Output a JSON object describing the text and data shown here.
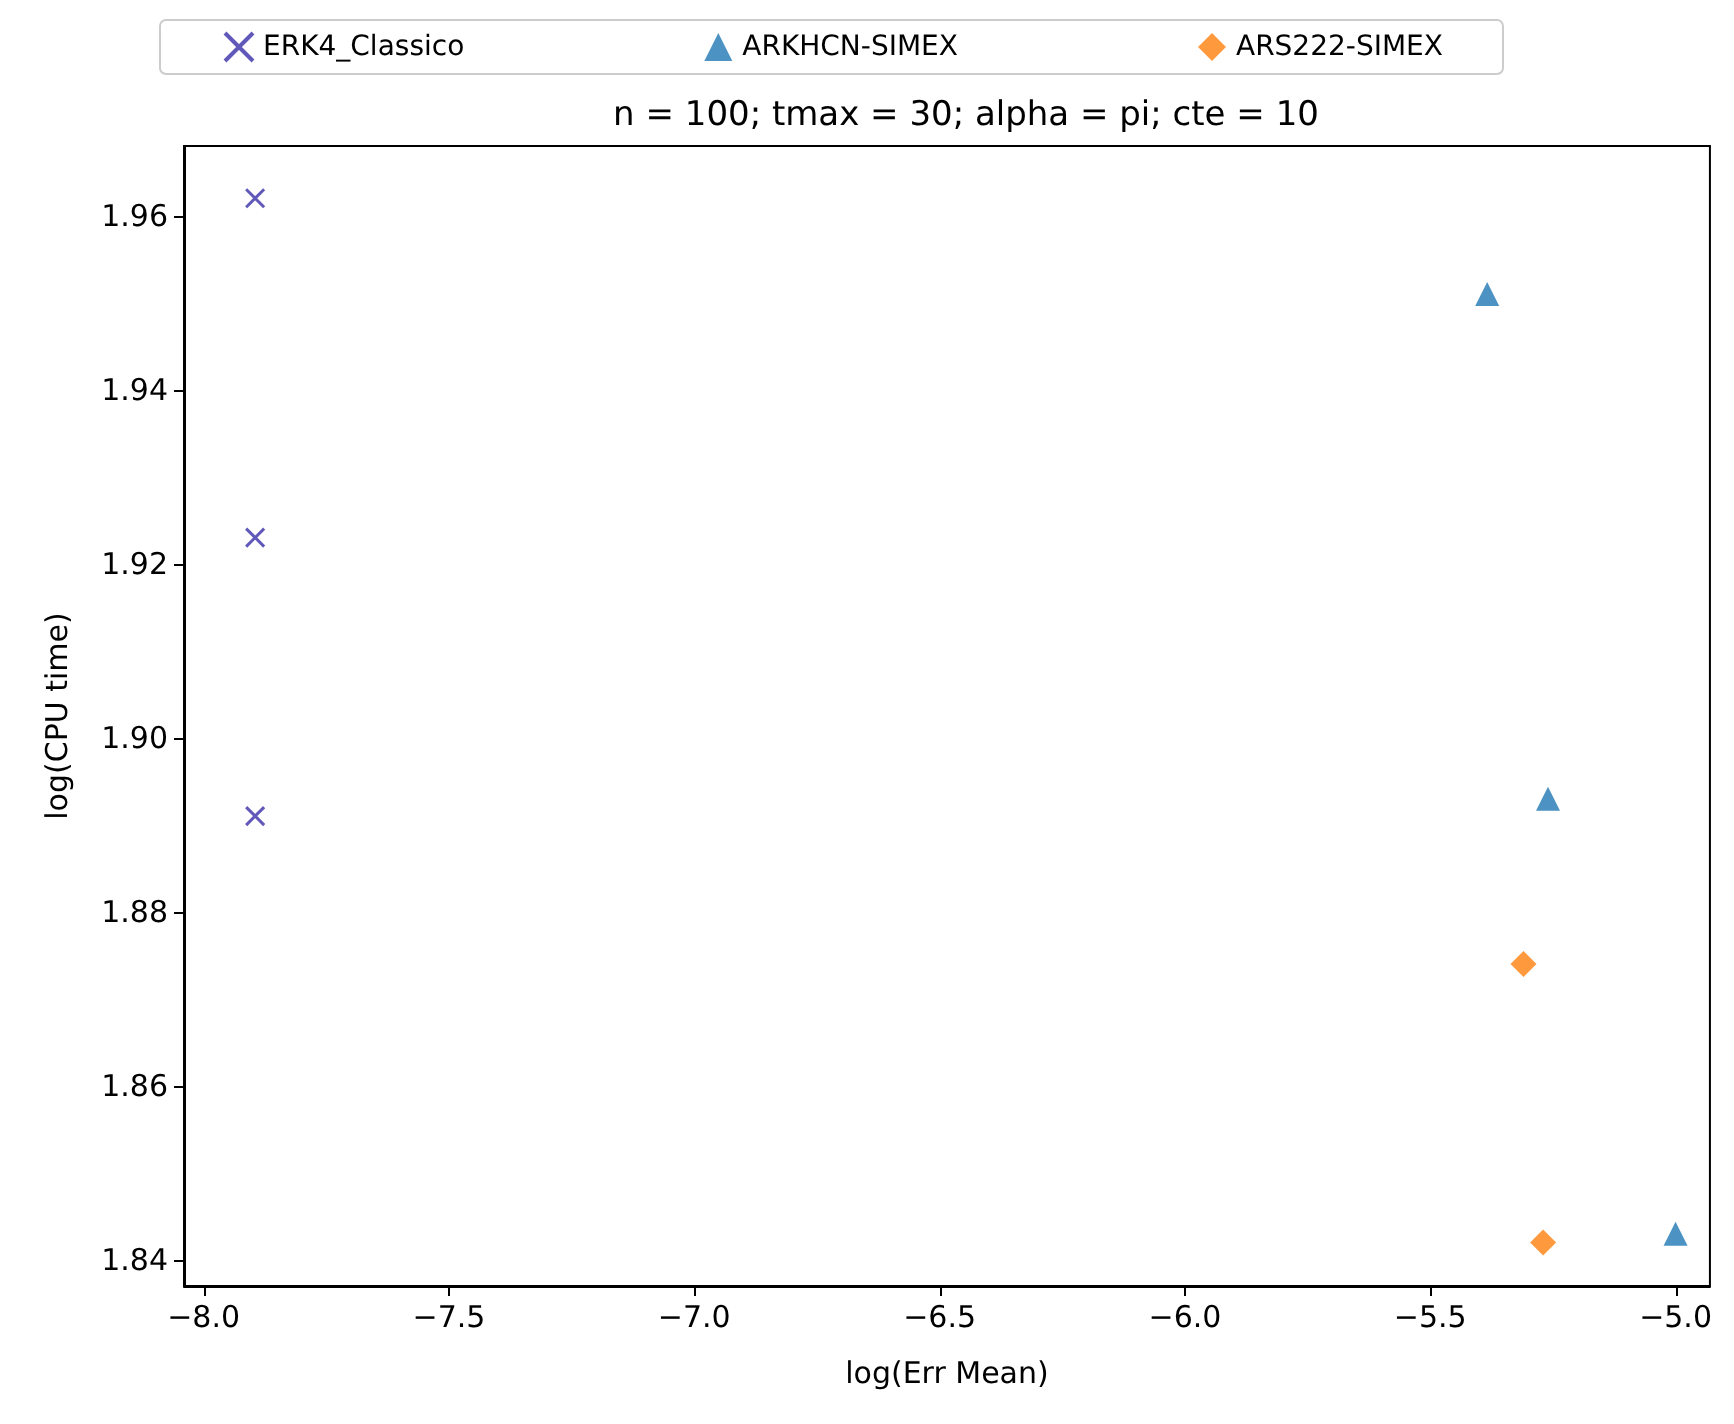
{
  "chart_data": {
    "type": "scatter",
    "title": "n = 100; tmax = 30; alpha = pi; cte = 10",
    "xlabel": "log(Err Mean)",
    "ylabel": "log(CPU time)",
    "legend": "top",
    "grid": false,
    "xlim": [
      -8.04,
      -4.93
    ],
    "xticks": [
      {
        "value": -8,
        "label": "−8.0"
      },
      {
        "value": -7.5,
        "label": "−7.5"
      },
      {
        "value": -7,
        "label": "−7.0"
      },
      {
        "value": -6.5,
        "label": "−6.5"
      },
      {
        "value": -6,
        "label": "−6.0"
      },
      {
        "value": -5.5,
        "label": "−5.5"
      },
      {
        "value": -5,
        "label": "−5.0"
      }
    ],
    "ylim": [
      1.837,
      1.968
    ],
    "yticks": [
      1.84,
      1.86,
      1.88,
      {
        "value": 1.9,
        "label": "1.90"
      },
      1.92,
      1.94,
      1.96
    ],
    "series": [
      {
        "name": "ERK4_Classico",
        "color": "#3a2fa8",
        "marker": "cross",
        "x": [
          -7.895,
          -7.895,
          -7.895
        ],
        "values": [
          1.962,
          1.923,
          1.891
        ]
      },
      {
        "name": "ARKHCN-SIMEX",
        "color": "#1f77b4",
        "marker": "triangle",
        "x": [
          -5.384,
          -5.26,
          -5.0
        ],
        "values": [
          1.951,
          1.893,
          1.843
        ]
      },
      {
        "name": "ARS222-SIMEX",
        "color": "#ff7f0e",
        "marker": "diamond",
        "x": [
          -5.31,
          -5.27
        ],
        "values": [
          1.874,
          1.842
        ]
      }
    ]
  }
}
